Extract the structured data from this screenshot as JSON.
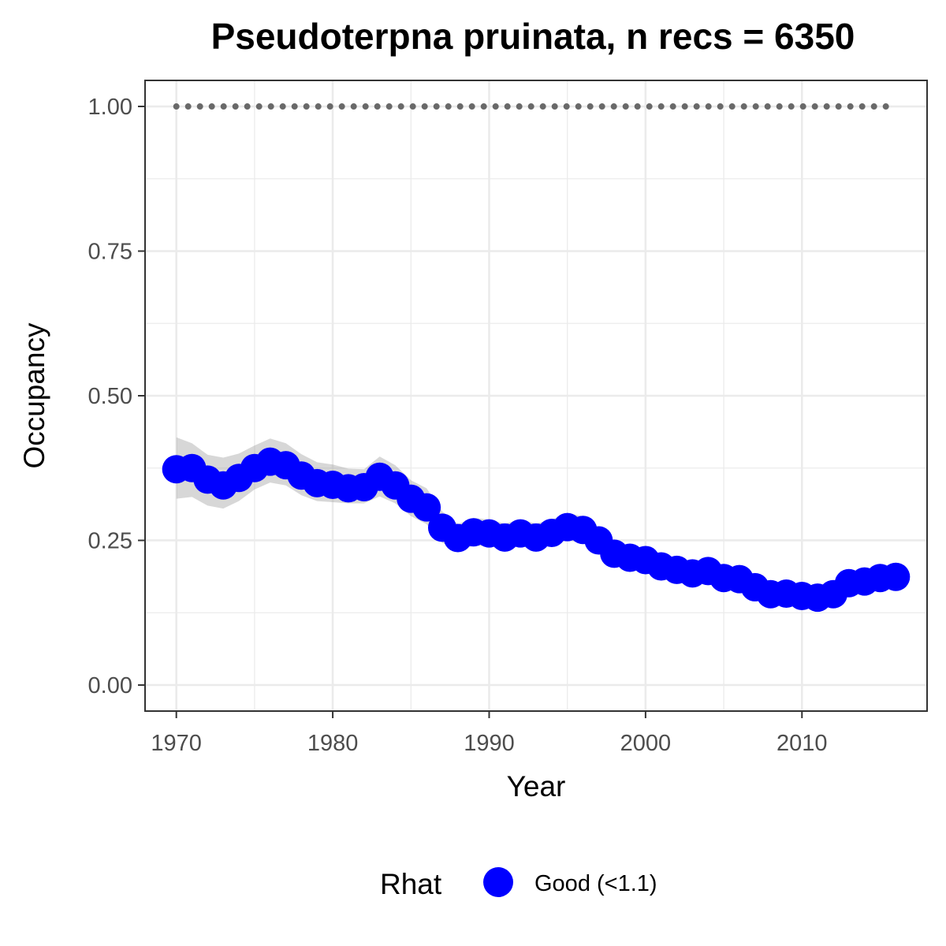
{
  "chart_data": {
    "type": "line",
    "title": "Pseudoterpna pruinata, n recs = 6350",
    "xlabel": "Year",
    "ylabel": "Occupancy",
    "xlim": [
      1968,
      2018
    ],
    "ylim": [
      -0.045,
      1.045
    ],
    "x_ticks": [
      1970,
      1980,
      1990,
      2000,
      2010
    ],
    "y_ticks": [
      0,
      0.25,
      0.5,
      0.75,
      1
    ],
    "y_tick_labels": [
      "0.00",
      "0.25",
      "0.50",
      "0.75",
      "1.00"
    ],
    "grid": true,
    "legend": {
      "title": "Rhat",
      "position": "bottom",
      "entries": [
        {
          "label": "Good (<1.1)",
          "color": "#0000ff"
        }
      ]
    },
    "series": [
      {
        "type": "points",
        "color": "#0000ff",
        "x": [
          1970,
          1971,
          1972,
          1973,
          1974,
          1975,
          1976,
          1977,
          1978,
          1979,
          1980,
          1981,
          1982,
          1983,
          1984,
          1985,
          1986,
          1987,
          1988,
          1989,
          1990,
          1991,
          1992,
          1993,
          1994,
          1995,
          1996,
          1997,
          1998,
          1999,
          2000,
          2001,
          2002,
          2003,
          2004,
          2005,
          2006,
          2007,
          2008,
          2009,
          2010,
          2011,
          2012,
          2013,
          2014,
          2015,
          2016
        ],
        "values": [
          0.373,
          0.375,
          0.355,
          0.345,
          0.358,
          0.375,
          0.386,
          0.38,
          0.362,
          0.349,
          0.346,
          0.34,
          0.342,
          0.36,
          0.345,
          0.322,
          0.307,
          0.272,
          0.254,
          0.264,
          0.262,
          0.255,
          0.262,
          0.255,
          0.263,
          0.273,
          0.268,
          0.25,
          0.227,
          0.22,
          0.216,
          0.205,
          0.199,
          0.193,
          0.197,
          0.185,
          0.183,
          0.169,
          0.157,
          0.158,
          0.154,
          0.151,
          0.157,
          0.176,
          0.179,
          0.185,
          0.187
        ],
        "lower": [
          0.322,
          0.325,
          0.31,
          0.305,
          0.318,
          0.338,
          0.35,
          0.345,
          0.328,
          0.318,
          0.316,
          0.314,
          0.314,
          0.326,
          0.314,
          0.292,
          0.278,
          0.246,
          0.232,
          0.241,
          0.24,
          0.234,
          0.24,
          0.234,
          0.242,
          0.25,
          0.246,
          0.23,
          0.209,
          0.203,
          0.199,
          0.189,
          0.183,
          0.178,
          0.181,
          0.17,
          0.168,
          0.155,
          0.144,
          0.145,
          0.141,
          0.138,
          0.143,
          0.16,
          0.163,
          0.168,
          0.169
        ],
        "upper": [
          0.428,
          0.418,
          0.398,
          0.393,
          0.4,
          0.414,
          0.426,
          0.418,
          0.399,
          0.385,
          0.381,
          0.374,
          0.373,
          0.395,
          0.38,
          0.354,
          0.34,
          0.3,
          0.278,
          0.289,
          0.286,
          0.279,
          0.286,
          0.279,
          0.286,
          0.297,
          0.292,
          0.272,
          0.247,
          0.239,
          0.235,
          0.223,
          0.217,
          0.21,
          0.214,
          0.202,
          0.2,
          0.185,
          0.171,
          0.172,
          0.168,
          0.166,
          0.173,
          0.193,
          0.196,
          0.203,
          0.206
        ]
      },
      {
        "type": "dotted-line",
        "color": "#696969",
        "x": [
          1970,
          2016
        ],
        "values": [
          1,
          1
        ]
      }
    ]
  }
}
